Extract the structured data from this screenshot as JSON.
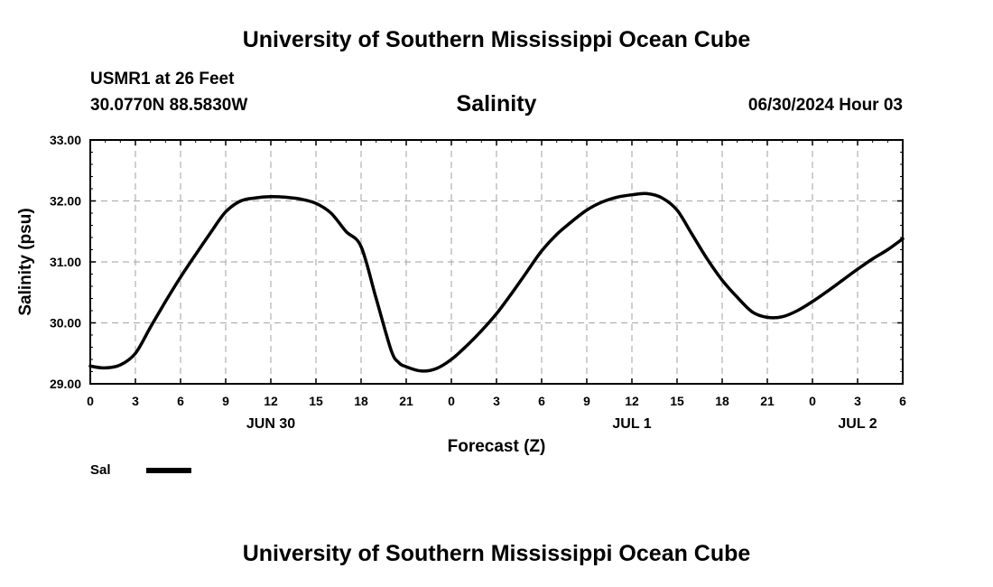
{
  "header": {
    "title": "University of Southern Mississippi Ocean Cube",
    "station": "USMR1 at 26 Feet",
    "coords": "30.0770N  88.5830W",
    "parameter": "Salinity",
    "datetime": "06/30/2024 Hour 03"
  },
  "footer": {
    "title": "University of Southern Mississippi Ocean Cube"
  },
  "colors": {
    "line": "#000000",
    "grid": "#b0b0b0",
    "background": "#ffffff"
  },
  "chart_data": {
    "type": "line",
    "title": "Salinity",
    "xlabel": "Forecast (Z)",
    "ylabel": "Salinity (psu)",
    "xlim": [
      0,
      54
    ],
    "ylim": [
      29.0,
      33.0
    ],
    "x_tick_hours": [
      0,
      3,
      6,
      9,
      12,
      15,
      18,
      21,
      24,
      27,
      30,
      33,
      36,
      39,
      42,
      45,
      48,
      51,
      54
    ],
    "x_tick_labels": [
      "0",
      "3",
      "6",
      "9",
      "12",
      "15",
      "18",
      "21",
      "0",
      "3",
      "6",
      "9",
      "12",
      "15",
      "18",
      "21",
      "0",
      "3",
      "6"
    ],
    "y_ticks": [
      29,
      30,
      31,
      32,
      33
    ],
    "y_tick_labels": [
      "29.00",
      "30.00",
      "31.00",
      "32.00",
      "33.00"
    ],
    "day_labels": [
      {
        "hour": 12,
        "label": "JUN 30"
      },
      {
        "hour": 36,
        "label": "JUL 1"
      },
      {
        "hour": 51,
        "label": "JUL 2"
      }
    ],
    "grid": true,
    "legend_position": "bottom-left",
    "series": [
      {
        "name": "Sal",
        "x": [
          0,
          1,
          2,
          3,
          4,
          5,
          6,
          7,
          8,
          9,
          10,
          11,
          12,
          13,
          14,
          15,
          16,
          17,
          18,
          19,
          20,
          20.5,
          21,
          22,
          23,
          24,
          25,
          26,
          27,
          28,
          29,
          30,
          31,
          32,
          33,
          34,
          35,
          36,
          37,
          38,
          39,
          40,
          41,
          42,
          43,
          44,
          45,
          46,
          47,
          48,
          49,
          50,
          51,
          52,
          53,
          54
        ],
        "y": [
          29.29,
          29.26,
          29.31,
          29.5,
          29.93,
          30.35,
          30.75,
          31.12,
          31.48,
          31.82,
          32.0,
          32.05,
          32.07,
          32.06,
          32.03,
          31.96,
          31.8,
          31.5,
          31.25,
          30.4,
          29.55,
          29.35,
          29.28,
          29.21,
          29.25,
          29.4,
          29.62,
          29.87,
          30.15,
          30.48,
          30.83,
          31.18,
          31.45,
          31.66,
          31.85,
          31.98,
          32.06,
          32.1,
          32.12,
          32.05,
          31.85,
          31.45,
          31.05,
          30.7,
          30.42,
          30.18,
          30.09,
          30.1,
          30.2,
          30.35,
          30.52,
          30.7,
          30.88,
          31.05,
          31.2,
          31.38
        ]
      }
    ]
  }
}
